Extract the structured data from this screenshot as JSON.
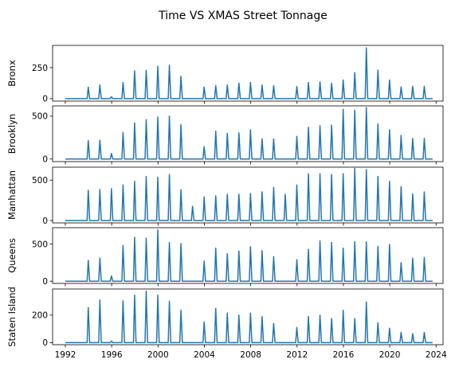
{
  "title": "Time VS XMAS Street Tonnage",
  "chart_data": [
    {
      "type": "line",
      "ylabel": "Bronx",
      "yticks": [
        0,
        250
      ],
      "ylim": [
        -20,
        430
      ],
      "color": "#1f77b4",
      "peaks": [
        {
          "x": 1994,
          "y": 93
        },
        {
          "x": 1995,
          "y": 110
        },
        {
          "x": 1996,
          "y": 15
        },
        {
          "x": 1997,
          "y": 130
        },
        {
          "x": 1998,
          "y": 225
        },
        {
          "x": 1999,
          "y": 228
        },
        {
          "x": 2000,
          "y": 262
        },
        {
          "x": 2001,
          "y": 270
        },
        {
          "x": 2002,
          "y": 180
        },
        {
          "x": 2004,
          "y": 93
        },
        {
          "x": 2005,
          "y": 105
        },
        {
          "x": 2006,
          "y": 110
        },
        {
          "x": 2007,
          "y": 125
        },
        {
          "x": 2008,
          "y": 130
        },
        {
          "x": 2009,
          "y": 110
        },
        {
          "x": 2010,
          "y": 105
        },
        {
          "x": 2012,
          "y": 98
        },
        {
          "x": 2013,
          "y": 130
        },
        {
          "x": 2014,
          "y": 135
        },
        {
          "x": 2015,
          "y": 125
        },
        {
          "x": 2016,
          "y": 150
        },
        {
          "x": 2017,
          "y": 210
        },
        {
          "x": 2018,
          "y": 410
        },
        {
          "x": 2019,
          "y": 230
        },
        {
          "x": 2020,
          "y": 150
        },
        {
          "x": 2021,
          "y": 95
        },
        {
          "x": 2022,
          "y": 100
        },
        {
          "x": 2023,
          "y": 100
        }
      ]
    },
    {
      "type": "line",
      "ylabel": "Brooklyn",
      "yticks": [
        0,
        500
      ],
      "ylim": [
        -30,
        620
      ],
      "color": "#1f77b4",
      "peaks": [
        {
          "x": 1994,
          "y": 215
        },
        {
          "x": 1995,
          "y": 220
        },
        {
          "x": 1996,
          "y": 65
        },
        {
          "x": 1997,
          "y": 310
        },
        {
          "x": 1998,
          "y": 420
        },
        {
          "x": 1999,
          "y": 460
        },
        {
          "x": 2000,
          "y": 490
        },
        {
          "x": 2001,
          "y": 500
        },
        {
          "x": 2002,
          "y": 400
        },
        {
          "x": 2004,
          "y": 145
        },
        {
          "x": 2005,
          "y": 325
        },
        {
          "x": 2006,
          "y": 300
        },
        {
          "x": 2007,
          "y": 305
        },
        {
          "x": 2008,
          "y": 340
        },
        {
          "x": 2009,
          "y": 235
        },
        {
          "x": 2010,
          "y": 235
        },
        {
          "x": 2012,
          "y": 265
        },
        {
          "x": 2013,
          "y": 370
        },
        {
          "x": 2014,
          "y": 390
        },
        {
          "x": 2015,
          "y": 395
        },
        {
          "x": 2016,
          "y": 580
        },
        {
          "x": 2017,
          "y": 570
        },
        {
          "x": 2018,
          "y": 600
        },
        {
          "x": 2019,
          "y": 410
        },
        {
          "x": 2020,
          "y": 340
        },
        {
          "x": 2021,
          "y": 275
        },
        {
          "x": 2022,
          "y": 240
        },
        {
          "x": 2023,
          "y": 240
        }
      ]
    },
    {
      "type": "line",
      "ylabel": "Manhattan",
      "yticks": [
        0,
        500
      ],
      "ylim": [
        -30,
        660
      ],
      "color": "#1f77b4",
      "peaks": [
        {
          "x": 1994,
          "y": 375
        },
        {
          "x": 1995,
          "y": 385
        },
        {
          "x": 1996,
          "y": 395
        },
        {
          "x": 1997,
          "y": 440
        },
        {
          "x": 1998,
          "y": 485
        },
        {
          "x": 1999,
          "y": 545
        },
        {
          "x": 2000,
          "y": 535
        },
        {
          "x": 2001,
          "y": 570
        },
        {
          "x": 2002,
          "y": 380
        },
        {
          "x": 2003,
          "y": 175
        },
        {
          "x": 2004,
          "y": 290
        },
        {
          "x": 2005,
          "y": 305
        },
        {
          "x": 2006,
          "y": 325
        },
        {
          "x": 2007,
          "y": 325
        },
        {
          "x": 2008,
          "y": 335
        },
        {
          "x": 2009,
          "y": 355
        },
        {
          "x": 2010,
          "y": 410
        },
        {
          "x": 2011,
          "y": 325
        },
        {
          "x": 2012,
          "y": 440
        },
        {
          "x": 2013,
          "y": 580
        },
        {
          "x": 2014,
          "y": 580
        },
        {
          "x": 2015,
          "y": 570
        },
        {
          "x": 2016,
          "y": 580
        },
        {
          "x": 2017,
          "y": 645
        },
        {
          "x": 2018,
          "y": 630
        },
        {
          "x": 2019,
          "y": 545
        },
        {
          "x": 2020,
          "y": 485
        },
        {
          "x": 2021,
          "y": 420
        },
        {
          "x": 2022,
          "y": 330
        },
        {
          "x": 2023,
          "y": 355
        }
      ]
    },
    {
      "type": "line",
      "ylabel": "Queens",
      "yticks": [
        0,
        500
      ],
      "ylim": [
        -30,
        720
      ],
      "color": "#1f77b4",
      "peaks": [
        {
          "x": 1994,
          "y": 280
        },
        {
          "x": 1995,
          "y": 310
        },
        {
          "x": 1996,
          "y": 70
        },
        {
          "x": 1997,
          "y": 480
        },
        {
          "x": 1998,
          "y": 590
        },
        {
          "x": 1999,
          "y": 580
        },
        {
          "x": 2000,
          "y": 690
        },
        {
          "x": 2001,
          "y": 520
        },
        {
          "x": 2002,
          "y": 505
        },
        {
          "x": 2004,
          "y": 270
        },
        {
          "x": 2005,
          "y": 445
        },
        {
          "x": 2006,
          "y": 370
        },
        {
          "x": 2007,
          "y": 405
        },
        {
          "x": 2008,
          "y": 465
        },
        {
          "x": 2009,
          "y": 410
        },
        {
          "x": 2010,
          "y": 330
        },
        {
          "x": 2012,
          "y": 290
        },
        {
          "x": 2013,
          "y": 430
        },
        {
          "x": 2014,
          "y": 540
        },
        {
          "x": 2015,
          "y": 520
        },
        {
          "x": 2016,
          "y": 445
        },
        {
          "x": 2017,
          "y": 530
        },
        {
          "x": 2018,
          "y": 530
        },
        {
          "x": 2019,
          "y": 470
        },
        {
          "x": 2020,
          "y": 495
        },
        {
          "x": 2021,
          "y": 250
        },
        {
          "x": 2022,
          "y": 310
        },
        {
          "x": 2023,
          "y": 320
        }
      ]
    },
    {
      "type": "line",
      "ylabel": "Staten Island",
      "yticks": [
        0,
        200
      ],
      "ylim": [
        -15,
        390
      ],
      "color": "#1f77b4",
      "xlabel": "",
      "xticks": [
        1992,
        1996,
        2000,
        2004,
        2008,
        2012,
        2016,
        2020,
        2024
      ],
      "peaks": [
        {
          "x": 1994,
          "y": 255
        },
        {
          "x": 1995,
          "y": 310
        },
        {
          "x": 1996,
          "y": 12
        },
        {
          "x": 1997,
          "y": 305
        },
        {
          "x": 1998,
          "y": 345
        },
        {
          "x": 1999,
          "y": 375
        },
        {
          "x": 2000,
          "y": 345
        },
        {
          "x": 2001,
          "y": 300
        },
        {
          "x": 2002,
          "y": 235
        },
        {
          "x": 2004,
          "y": 150
        },
        {
          "x": 2005,
          "y": 250
        },
        {
          "x": 2006,
          "y": 215
        },
        {
          "x": 2007,
          "y": 200
        },
        {
          "x": 2008,
          "y": 215
        },
        {
          "x": 2009,
          "y": 190
        },
        {
          "x": 2010,
          "y": 140
        },
        {
          "x": 2012,
          "y": 110
        },
        {
          "x": 2013,
          "y": 190
        },
        {
          "x": 2014,
          "y": 200
        },
        {
          "x": 2015,
          "y": 175
        },
        {
          "x": 2016,
          "y": 235
        },
        {
          "x": 2017,
          "y": 175
        },
        {
          "x": 2018,
          "y": 295
        },
        {
          "x": 2019,
          "y": 145
        },
        {
          "x": 2020,
          "y": 105
        },
        {
          "x": 2021,
          "y": 75
        },
        {
          "x": 2022,
          "y": 65
        },
        {
          "x": 2023,
          "y": 75
        }
      ]
    }
  ]
}
